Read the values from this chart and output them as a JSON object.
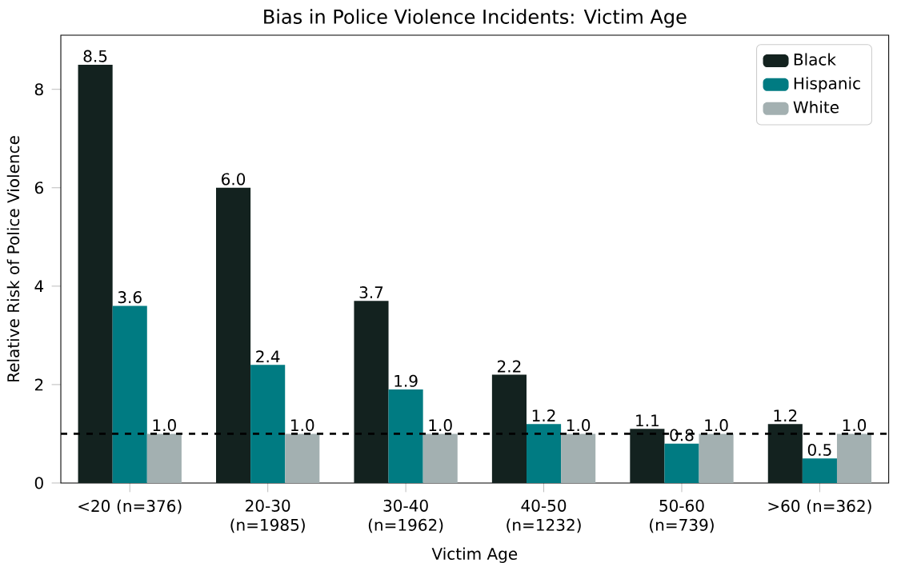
{
  "chart_data": {
    "type": "bar",
    "title": "Bias in Police Violence Incidents: Victim Age",
    "xlabel": "Victim Age",
    "ylabel": "Relative Risk of Police Violence",
    "categories": [
      "<20 (n=376)",
      "20-30 (n=1985)",
      "30-40 (n=1962)",
      "40-50 (n=1232)",
      "50-60 (n=739)",
      ">60 (n=362)"
    ],
    "series": [
      {
        "name": "Black",
        "color": "#13221f",
        "values": [
          8.5,
          6.0,
          3.7,
          2.2,
          1.1,
          1.2
        ],
        "value_labels": [
          "8.5",
          "6.0",
          "3.7",
          "2.2",
          "1.1",
          "1.2"
        ]
      },
      {
        "name": "Hispanic",
        "color": "#007b82",
        "values": [
          3.6,
          2.4,
          1.9,
          1.2,
          0.8,
          0.5
        ],
        "value_labels": [
          "3.6",
          "2.4",
          "1.9",
          "1.2",
          "0.8",
          "0.5"
        ]
      },
      {
        "name": "White",
        "color": "#a3b0b1",
        "values": [
          1.0,
          1.0,
          1.0,
          1.0,
          1.0,
          1.0
        ],
        "value_labels": [
          "1.0",
          "1.0",
          "1.0",
          "1.0",
          "1.0",
          "1.0"
        ]
      }
    ],
    "ylim": [
      0,
      9.1
    ],
    "yticks": [
      0,
      2,
      4,
      6,
      8
    ],
    "ref_lines": [
      {
        "axis": "y",
        "value": 1,
        "color": "#000000",
        "line_style": "dashed"
      }
    ],
    "legend": "top right",
    "grid": false
  }
}
